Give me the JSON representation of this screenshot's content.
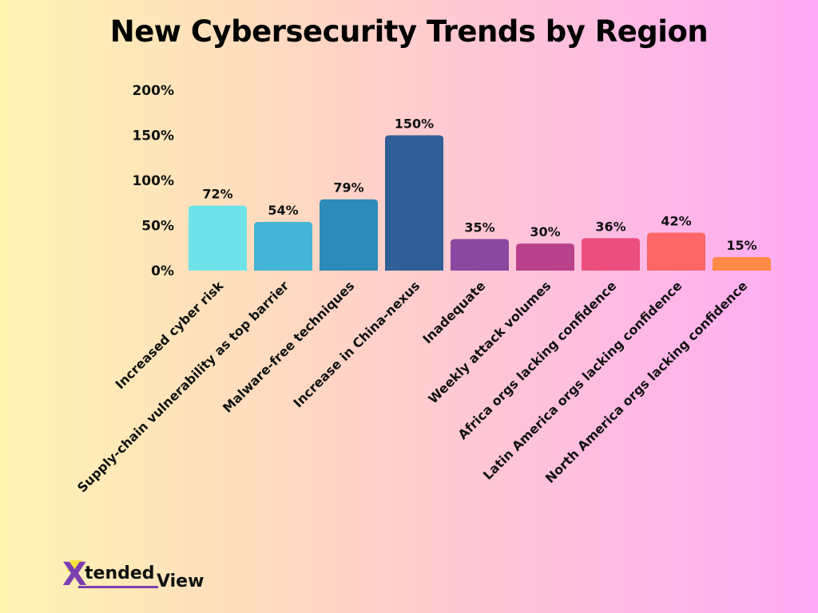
{
  "chart_data": {
    "type": "bar",
    "title": "New Cybersecurity Trends by Region",
    "xlabel": "",
    "ylabel": "",
    "ylim": [
      0,
      200
    ],
    "yticks": [
      "0%",
      "50%",
      "100%",
      "150%",
      "200%"
    ],
    "grid": false,
    "categories": [
      "Increased cyber risk",
      "Supply-chain vulnerability as top barrier",
      "Malware-free techniques",
      "Increase in China-nexus",
      "Inadequate",
      "Weekly attack volumes",
      "Africa orgs lacking confidence",
      "Latin America orgs lacking confidence",
      "North America orgs lacking confidence"
    ],
    "values": [
      72,
      54,
      79,
      150,
      35,
      30,
      36,
      42,
      15
    ],
    "data_labels": [
      "72%",
      "54%",
      "79%",
      "150%",
      "35%",
      "30%",
      "36%",
      "42%",
      "15%"
    ],
    "colors": [
      "#6ce3e8",
      "#42b6d4",
      "#2e8ab8",
      "#2f5f96",
      "#8a48a0",
      "#ba428c",
      "#ec4f7e",
      "#ff6666",
      "#ff8a48"
    ]
  },
  "logo": {
    "text": "XtendedView"
  }
}
